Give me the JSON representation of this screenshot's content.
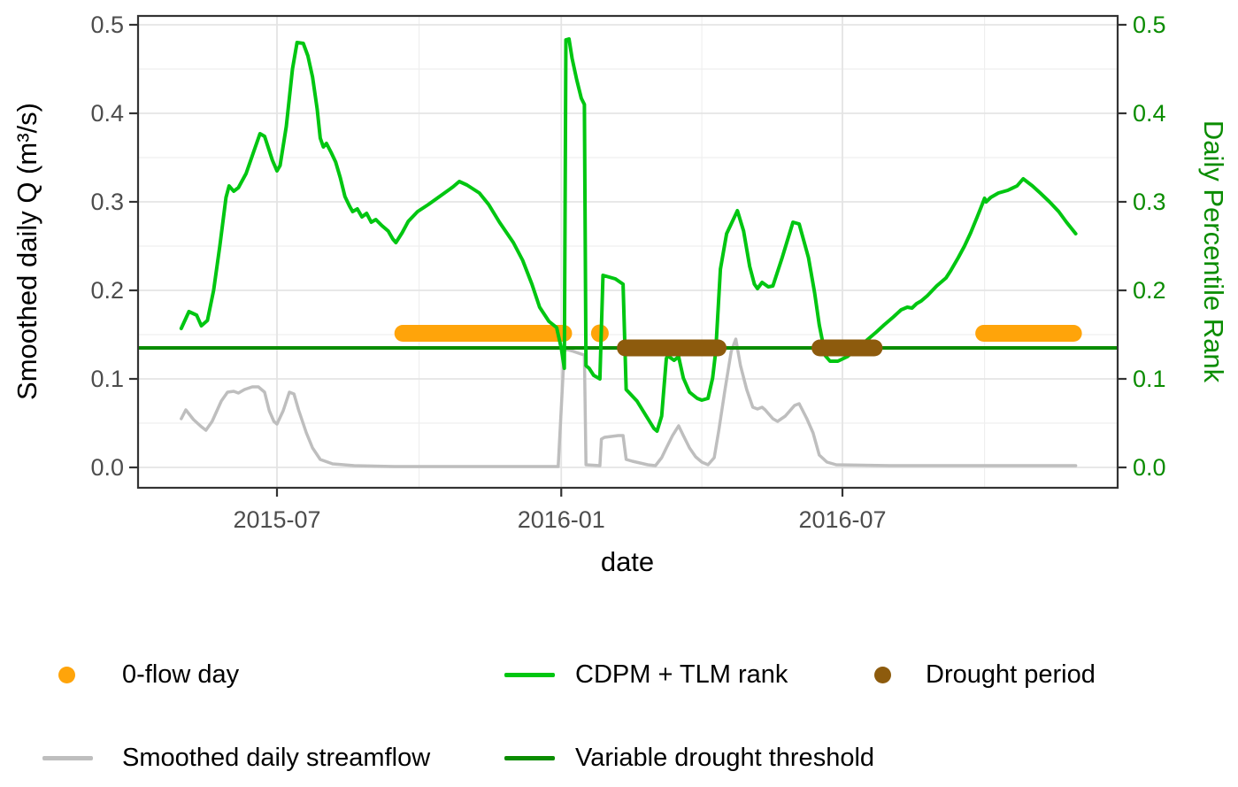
{
  "colors": {
    "bright_green": "#00C611",
    "dark_green": "#0A8C00",
    "orange": "#FFA40A",
    "brown": "#8D5B0D",
    "gray": "#BEBEBE",
    "grid_major": "#E4E4E4",
    "grid_minor": "#EFEFEF",
    "border": "#333333",
    "tick_text": "#4D4D4D",
    "axis_text": "#000000"
  },
  "axes": {
    "x": {
      "label": "date",
      "major": [
        {
          "label": "2015-07",
          "date": "2015-07-01"
        },
        {
          "label": "2016-01",
          "date": "2016-01-01"
        },
        {
          "label": "2016-07",
          "date": "2016-07-01"
        }
      ],
      "minor_dates": [
        "2015-10-01",
        "2016-04-01",
        "2016-10-01"
      ],
      "range_dates": [
        "2015-04-02",
        "2016-12-26"
      ]
    },
    "y_left": {
      "label": "Smoothed daily Q (m³/s)",
      "tick_values": [
        0.0,
        0.1,
        0.2,
        0.3,
        0.4,
        0.5
      ],
      "tick_labels": [
        "0.0",
        "0.1",
        "0.2",
        "0.3",
        "0.4",
        "0.5"
      ],
      "minor_values": [
        0.05,
        0.15,
        0.25,
        0.35,
        0.45
      ],
      "range": [
        0.0,
        0.5
      ]
    },
    "y_right": {
      "label": "Daily Percentile Rank",
      "tick_values": [
        0.0,
        0.1,
        0.2,
        0.3,
        0.4,
        0.5
      ],
      "tick_labels": [
        "0.0",
        "0.1",
        "0.2",
        "0.3",
        "0.4",
        "0.5"
      ],
      "range": [
        0.0,
        0.5
      ]
    }
  },
  "legend": {
    "items": [
      {
        "label": "0-flow day",
        "swatch": "dot",
        "color_key": "orange"
      },
      {
        "label": "CDPM + TLM rank",
        "swatch": "line",
        "color_key": "bright_green"
      },
      {
        "label": "Drought period",
        "swatch": "dot",
        "color_key": "brown"
      },
      {
        "label": "Smoothed daily streamflow",
        "swatch": "line",
        "color_key": "gray"
      },
      {
        "label": "Variable drought threshold",
        "swatch": "line",
        "color_key": "dark_green"
      }
    ]
  },
  "chart_data": {
    "type": "line",
    "title": "",
    "xlabel": "date",
    "ylabel_left": "Smoothed daily Q (m³/s)",
    "ylabel_right": "Daily Percentile Rank",
    "ylim": [
      0.0,
      0.5
    ],
    "grid": true,
    "legend_position": "bottom",
    "series": [
      {
        "name": "CDPM + TLM rank",
        "axis": "right",
        "color": "#00C611",
        "width": 4,
        "points": [
          [
            "2015-04-30",
            0.157
          ],
          [
            "2015-05-05",
            0.176
          ],
          [
            "2015-05-10",
            0.172
          ],
          [
            "2015-05-13",
            0.16
          ],
          [
            "2015-05-17",
            0.166
          ],
          [
            "2015-05-21",
            0.2
          ],
          [
            "2015-05-25",
            0.25
          ],
          [
            "2015-05-29",
            0.305
          ],
          [
            "2015-05-31",
            0.318
          ],
          [
            "2015-06-03",
            0.312
          ],
          [
            "2015-06-06",
            0.316
          ],
          [
            "2015-06-11",
            0.332
          ],
          [
            "2015-06-16",
            0.357
          ],
          [
            "2015-06-20",
            0.377
          ],
          [
            "2015-06-23",
            0.374
          ],
          [
            "2015-06-28",
            0.347
          ],
          [
            "2015-07-01",
            0.335
          ],
          [
            "2015-07-03",
            0.341
          ],
          [
            "2015-07-07",
            0.385
          ],
          [
            "2015-07-11",
            0.45
          ],
          [
            "2015-07-14",
            0.48
          ],
          [
            "2015-07-18",
            0.479
          ],
          [
            "2015-07-21",
            0.465
          ],
          [
            "2015-07-24",
            0.441
          ],
          [
            "2015-07-27",
            0.405
          ],
          [
            "2015-07-29",
            0.372
          ],
          [
            "2015-07-31",
            0.362
          ],
          [
            "2015-08-02",
            0.366
          ],
          [
            "2015-08-05",
            0.356
          ],
          [
            "2015-08-08",
            0.345
          ],
          [
            "2015-08-11",
            0.327
          ],
          [
            "2015-08-14",
            0.306
          ],
          [
            "2015-08-17",
            0.295
          ],
          [
            "2015-08-19",
            0.289
          ],
          [
            "2015-08-22",
            0.292
          ],
          [
            "2015-08-25",
            0.283
          ],
          [
            "2015-08-28",
            0.287
          ],
          [
            "2015-08-31",
            0.277
          ],
          [
            "2015-09-03",
            0.28
          ],
          [
            "2015-09-07",
            0.273
          ],
          [
            "2015-09-11",
            0.267
          ],
          [
            "2015-09-14",
            0.258
          ],
          [
            "2015-09-16",
            0.254
          ],
          [
            "2015-09-20",
            0.265
          ],
          [
            "2015-09-24",
            0.278
          ],
          [
            "2015-09-30",
            0.289
          ],
          [
            "2015-10-07",
            0.297
          ],
          [
            "2015-10-15",
            0.307
          ],
          [
            "2015-10-23",
            0.317
          ],
          [
            "2015-10-27",
            0.323
          ],
          [
            "2015-11-01",
            0.319
          ],
          [
            "2015-11-09",
            0.31
          ],
          [
            "2015-11-15",
            0.297
          ],
          [
            "2015-11-22",
            0.277
          ],
          [
            "2015-12-01",
            0.254
          ],
          [
            "2015-12-07",
            0.234
          ],
          [
            "2015-12-13",
            0.207
          ],
          [
            "2015-12-18",
            0.181
          ],
          [
            "2015-12-24",
            0.165
          ],
          [
            "2015-12-29",
            0.158
          ],
          [
            "2016-01-01",
            0.135
          ],
          [
            "2016-01-03",
            0.112
          ],
          [
            "2016-01-04",
            0.483
          ],
          [
            "2016-01-06",
            0.484
          ],
          [
            "2016-01-08",
            0.462
          ],
          [
            "2016-01-11",
            0.438
          ],
          [
            "2016-01-14",
            0.417
          ],
          [
            "2016-01-16",
            0.41
          ],
          [
            "2016-01-17",
            0.115
          ],
          [
            "2016-01-19",
            0.112
          ],
          [
            "2016-01-22",
            0.104
          ],
          [
            "2016-01-26",
            0.1
          ],
          [
            "2016-01-28",
            0.217
          ],
          [
            "2016-02-01",
            0.215
          ],
          [
            "2016-02-05",
            0.213
          ],
          [
            "2016-02-10",
            0.207
          ],
          [
            "2016-02-12",
            0.088
          ],
          [
            "2016-02-19",
            0.075
          ],
          [
            "2016-02-25",
            0.058
          ],
          [
            "2016-03-01",
            0.044
          ],
          [
            "2016-03-03",
            0.041
          ],
          [
            "2016-03-06",
            0.058
          ],
          [
            "2016-03-08",
            0.101
          ],
          [
            "2016-03-09",
            0.123
          ],
          [
            "2016-03-10",
            0.126
          ],
          [
            "2016-03-14",
            0.121
          ],
          [
            "2016-03-17",
            0.125
          ],
          [
            "2016-03-20",
            0.101
          ],
          [
            "2016-03-24",
            0.085
          ],
          [
            "2016-03-29",
            0.078
          ],
          [
            "2016-04-01",
            0.076
          ],
          [
            "2016-04-05",
            0.078
          ],
          [
            "2016-04-08",
            0.101
          ],
          [
            "2016-04-10",
            0.131
          ],
          [
            "2016-04-13",
            0.224
          ],
          [
            "2016-04-17",
            0.264
          ],
          [
            "2016-04-24",
            0.29
          ],
          [
            "2016-04-28",
            0.267
          ],
          [
            "2016-05-02",
            0.227
          ],
          [
            "2016-05-05",
            0.207
          ],
          [
            "2016-05-07",
            0.202
          ],
          [
            "2016-05-10",
            0.209
          ],
          [
            "2016-05-14",
            0.204
          ],
          [
            "2016-05-17",
            0.205
          ],
          [
            "2016-05-23",
            0.237
          ],
          [
            "2016-05-27",
            0.26
          ],
          [
            "2016-05-30",
            0.277
          ],
          [
            "2016-06-03",
            0.275
          ],
          [
            "2016-06-09",
            0.237
          ],
          [
            "2016-06-13",
            0.197
          ],
          [
            "2016-06-16",
            0.161
          ],
          [
            "2016-06-20",
            0.126
          ],
          [
            "2016-06-23",
            0.12
          ],
          [
            "2016-06-28",
            0.12
          ],
          [
            "2016-07-04",
            0.125
          ],
          [
            "2016-07-12",
            0.136
          ],
          [
            "2016-07-17",
            0.144
          ],
          [
            "2016-07-23",
            0.153
          ],
          [
            "2016-07-28",
            0.161
          ],
          [
            "2016-08-03",
            0.17
          ],
          [
            "2016-08-08",
            0.178
          ],
          [
            "2016-08-12",
            0.181
          ],
          [
            "2016-08-15",
            0.18
          ],
          [
            "2016-08-18",
            0.185
          ],
          [
            "2016-08-21",
            0.188
          ],
          [
            "2016-08-25",
            0.194
          ],
          [
            "2016-08-31",
            0.205
          ],
          [
            "2016-09-06",
            0.214
          ],
          [
            "2016-09-09",
            0.222
          ],
          [
            "2016-09-14",
            0.237
          ],
          [
            "2016-09-18",
            0.25
          ],
          [
            "2016-09-22",
            0.265
          ],
          [
            "2016-09-26",
            0.282
          ],
          [
            "2016-09-29",
            0.295
          ],
          [
            "2016-10-01",
            0.304
          ],
          [
            "2016-10-02",
            0.3
          ],
          [
            "2016-10-05",
            0.305
          ],
          [
            "2016-10-10",
            0.31
          ],
          [
            "2016-10-16",
            0.313
          ],
          [
            "2016-10-22",
            0.318
          ],
          [
            "2016-10-25",
            0.324
          ],
          [
            "2016-10-26",
            0.326
          ],
          [
            "2016-11-01",
            0.318
          ],
          [
            "2016-11-06",
            0.31
          ],
          [
            "2016-11-12",
            0.3
          ],
          [
            "2016-11-18",
            0.289
          ],
          [
            "2016-11-23",
            0.277
          ],
          [
            "2016-11-29",
            0.264
          ]
        ]
      },
      {
        "name": "Smoothed daily streamflow",
        "axis": "left",
        "color": "#BEBEBE",
        "width": 3.5,
        "points": [
          [
            "2015-04-30",
            0.055
          ],
          [
            "2015-05-03",
            0.065
          ],
          [
            "2015-05-08",
            0.054
          ],
          [
            "2015-05-13",
            0.046
          ],
          [
            "2015-05-16",
            0.042
          ],
          [
            "2015-05-20",
            0.052
          ],
          [
            "2015-05-26",
            0.075
          ],
          [
            "2015-05-30",
            0.085
          ],
          [
            "2015-06-03",
            0.086
          ],
          [
            "2015-06-06",
            0.084
          ],
          [
            "2015-06-10",
            0.088
          ],
          [
            "2015-06-15",
            0.091
          ],
          [
            "2015-06-19",
            0.091
          ],
          [
            "2015-06-23",
            0.085
          ],
          [
            "2015-06-26",
            0.064
          ],
          [
            "2015-06-29",
            0.052
          ],
          [
            "2015-07-01",
            0.049
          ],
          [
            "2015-07-05",
            0.064
          ],
          [
            "2015-07-09",
            0.085
          ],
          [
            "2015-07-12",
            0.083
          ],
          [
            "2015-07-15",
            0.065
          ],
          [
            "2015-07-20",
            0.039
          ],
          [
            "2015-07-24",
            0.022
          ],
          [
            "2015-07-29",
            0.009
          ],
          [
            "2015-08-06",
            0.004
          ],
          [
            "2015-08-20",
            0.002
          ],
          [
            "2015-09-15",
            0.001
          ],
          [
            "2015-10-15",
            0.001
          ],
          [
            "2015-12-30",
            0.001
          ],
          [
            "2016-01-03",
            0.132
          ],
          [
            "2016-01-05",
            0.133
          ],
          [
            "2016-01-09",
            0.131
          ],
          [
            "2016-01-14",
            0.128
          ],
          [
            "2016-01-16",
            0.127
          ],
          [
            "2016-01-17",
            0.003
          ],
          [
            "2016-01-26",
            0.002
          ],
          [
            "2016-01-27",
            0.032
          ],
          [
            "2016-01-29",
            0.034
          ],
          [
            "2016-02-07",
            0.036
          ],
          [
            "2016-02-10",
            0.036
          ],
          [
            "2016-02-12",
            0.009
          ],
          [
            "2016-02-16",
            0.007
          ],
          [
            "2016-02-26",
            0.003
          ],
          [
            "2016-03-02",
            0.002
          ],
          [
            "2016-03-06",
            0.011
          ],
          [
            "2016-03-09",
            0.022
          ],
          [
            "2016-03-13",
            0.036
          ],
          [
            "2016-03-17",
            0.047
          ],
          [
            "2016-03-20",
            0.036
          ],
          [
            "2016-03-24",
            0.022
          ],
          [
            "2016-03-28",
            0.012
          ],
          [
            "2016-04-01",
            0.006
          ],
          [
            "2016-04-05",
            0.003
          ],
          [
            "2016-04-09",
            0.011
          ],
          [
            "2016-04-12",
            0.042
          ],
          [
            "2016-04-16",
            0.088
          ],
          [
            "2016-04-20",
            0.131
          ],
          [
            "2016-04-23",
            0.145
          ],
          [
            "2016-04-26",
            0.115
          ],
          [
            "2016-04-30",
            0.088
          ],
          [
            "2016-05-04",
            0.068
          ],
          [
            "2016-05-07",
            0.066
          ],
          [
            "2016-05-10",
            0.068
          ],
          [
            "2016-05-12",
            0.065
          ],
          [
            "2016-05-17",
            0.055
          ],
          [
            "2016-05-20",
            0.052
          ],
          [
            "2016-05-25",
            0.058
          ],
          [
            "2016-05-31",
            0.07
          ],
          [
            "2016-06-03",
            0.072
          ],
          [
            "2016-06-08",
            0.055
          ],
          [
            "2016-06-12",
            0.039
          ],
          [
            "2016-06-16",
            0.014
          ],
          [
            "2016-06-21",
            0.006
          ],
          [
            "2016-06-27",
            0.003
          ],
          [
            "2016-08-01",
            0.002
          ],
          [
            "2016-10-01",
            0.002
          ],
          [
            "2016-11-29",
            0.002
          ]
        ]
      }
    ],
    "threshold": {
      "name": "Variable drought threshold",
      "value": 0.135,
      "color": "#0A8C00",
      "width": 4
    },
    "zero_flow": {
      "name": "0-flow day",
      "color": "#FFA40A",
      "y": 0.1515,
      "thickness": 19,
      "segments": [
        [
          "2015-09-15",
          "2016-01-08"
        ],
        [
          "2016-01-26",
          "2016-01-26"
        ],
        [
          "2016-09-25",
          "2016-12-03"
        ]
      ]
    },
    "drought": {
      "name": "Drought period",
      "color": "#8D5B0D",
      "y": 0.135,
      "thickness": 19,
      "segments": [
        [
          "2016-02-06",
          "2016-04-17"
        ],
        [
          "2016-06-11",
          "2016-07-27"
        ]
      ]
    }
  }
}
